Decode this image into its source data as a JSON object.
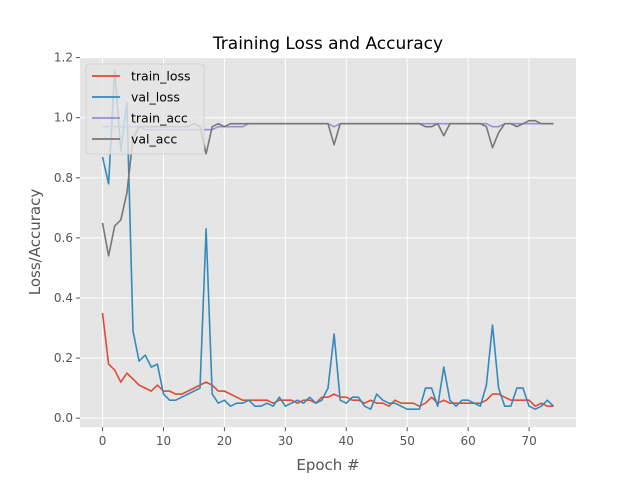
{
  "chart_data": {
    "type": "line",
    "title": "Training Loss and Accuracy",
    "xlabel": "Epoch #",
    "ylabel": "Loss/Accuracy",
    "xlim": [
      -3.7,
      77.7
    ],
    "ylim": [
      -0.03,
      1.2
    ],
    "xticks": [
      0,
      10,
      20,
      30,
      40,
      50,
      60,
      70
    ],
    "yticks": [
      0.0,
      0.2,
      0.4,
      0.6,
      0.8,
      1.0,
      1.2
    ],
    "xtick_labels": [
      "0",
      "10",
      "20",
      "30",
      "40",
      "50",
      "60",
      "70"
    ],
    "ytick_labels": [
      "0.0",
      "0.2",
      "0.4",
      "0.6",
      "0.8",
      "1.0",
      "1.2"
    ],
    "grid": true,
    "style": "ggplot",
    "legend_position": "upper-left",
    "x": [
      0,
      1,
      2,
      3,
      4,
      5,
      6,
      7,
      8,
      9,
      10,
      11,
      12,
      13,
      14,
      15,
      16,
      17,
      18,
      19,
      20,
      21,
      22,
      23,
      24,
      25,
      26,
      27,
      28,
      29,
      30,
      31,
      32,
      33,
      34,
      35,
      36,
      37,
      38,
      39,
      40,
      41,
      42,
      43,
      44,
      45,
      46,
      47,
      48,
      49,
      50,
      51,
      52,
      53,
      54,
      55,
      56,
      57,
      58,
      59,
      60,
      61,
      62,
      63,
      64,
      65,
      66,
      67,
      68,
      69,
      70,
      71,
      72,
      73,
      74
    ],
    "series": [
      {
        "name": "train_loss",
        "color": "#E24A33",
        "values": [
          0.35,
          0.18,
          0.16,
          0.12,
          0.15,
          0.13,
          0.11,
          0.1,
          0.09,
          0.11,
          0.09,
          0.09,
          0.08,
          0.08,
          0.09,
          0.1,
          0.11,
          0.12,
          0.11,
          0.09,
          0.09,
          0.08,
          0.07,
          0.06,
          0.06,
          0.06,
          0.06,
          0.06,
          0.05,
          0.06,
          0.06,
          0.06,
          0.05,
          0.06,
          0.06,
          0.05,
          0.07,
          0.07,
          0.08,
          0.07,
          0.07,
          0.06,
          0.06,
          0.05,
          0.06,
          0.05,
          0.05,
          0.04,
          0.06,
          0.05,
          0.05,
          0.05,
          0.04,
          0.05,
          0.07,
          0.05,
          0.06,
          0.05,
          0.05,
          0.05,
          0.05,
          0.05,
          0.05,
          0.06,
          0.08,
          0.08,
          0.07,
          0.06,
          0.06,
          0.06,
          0.06,
          0.04,
          0.05,
          0.04,
          0.04
        ]
      },
      {
        "name": "val_loss",
        "color": "#348ABD",
        "values": [
          0.87,
          0.78,
          1.16,
          0.89,
          1.05,
          0.29,
          0.19,
          0.21,
          0.17,
          0.18,
          0.08,
          0.06,
          0.06,
          0.07,
          0.08,
          0.09,
          0.1,
          0.63,
          0.08,
          0.05,
          0.06,
          0.04,
          0.05,
          0.05,
          0.06,
          0.04,
          0.04,
          0.05,
          0.04,
          0.07,
          0.04,
          0.05,
          0.06,
          0.05,
          0.07,
          0.05,
          0.06,
          0.1,
          0.28,
          0.06,
          0.05,
          0.07,
          0.07,
          0.04,
          0.03,
          0.08,
          0.06,
          0.05,
          0.05,
          0.04,
          0.03,
          0.03,
          0.03,
          0.1,
          0.1,
          0.04,
          0.17,
          0.06,
          0.04,
          0.06,
          0.06,
          0.05,
          0.04,
          0.11,
          0.31,
          0.1,
          0.04,
          0.04,
          0.1,
          0.1,
          0.04,
          0.03,
          0.04,
          0.06,
          0.04
        ]
      },
      {
        "name": "train_acc",
        "color": "#988ED5",
        "values": [
          0.97,
          0.97,
          0.97,
          0.97,
          0.97,
          0.97,
          0.97,
          0.96,
          0.96,
          0.96,
          0.96,
          0.96,
          0.96,
          0.96,
          0.96,
          0.96,
          0.96,
          0.96,
          0.96,
          0.97,
          0.97,
          0.97,
          0.97,
          0.97,
          0.98,
          0.98,
          0.98,
          0.98,
          0.98,
          0.98,
          0.98,
          0.98,
          0.98,
          0.98,
          0.98,
          0.98,
          0.98,
          0.98,
          0.97,
          0.98,
          0.98,
          0.98,
          0.98,
          0.98,
          0.98,
          0.98,
          0.98,
          0.98,
          0.98,
          0.98,
          0.98,
          0.98,
          0.98,
          0.98,
          0.98,
          0.98,
          0.98,
          0.98,
          0.98,
          0.98,
          0.98,
          0.98,
          0.98,
          0.98,
          0.97,
          0.97,
          0.98,
          0.98,
          0.98,
          0.98,
          0.98,
          0.98,
          0.98,
          0.98,
          0.98
        ]
      },
      {
        "name": "val_acc",
        "color": "#777777",
        "values": [
          0.65,
          0.54,
          0.64,
          0.66,
          0.75,
          0.93,
          0.97,
          0.97,
          0.97,
          0.97,
          0.97,
          0.97,
          0.97,
          0.97,
          0.97,
          0.98,
          0.97,
          0.88,
          0.97,
          0.98,
          0.97,
          0.98,
          0.98,
          0.98,
          0.98,
          0.98,
          0.98,
          0.98,
          0.98,
          0.98,
          0.98,
          0.98,
          0.98,
          0.98,
          0.98,
          0.98,
          0.98,
          0.98,
          0.91,
          0.98,
          0.98,
          0.98,
          0.98,
          0.98,
          0.98,
          0.98,
          0.98,
          0.98,
          0.98,
          0.98,
          0.98,
          0.98,
          0.98,
          0.97,
          0.97,
          0.98,
          0.94,
          0.98,
          0.98,
          0.98,
          0.98,
          0.98,
          0.98,
          0.97,
          0.9,
          0.95,
          0.98,
          0.98,
          0.97,
          0.98,
          0.99,
          0.99,
          0.98,
          0.98,
          0.98
        ]
      }
    ]
  }
}
